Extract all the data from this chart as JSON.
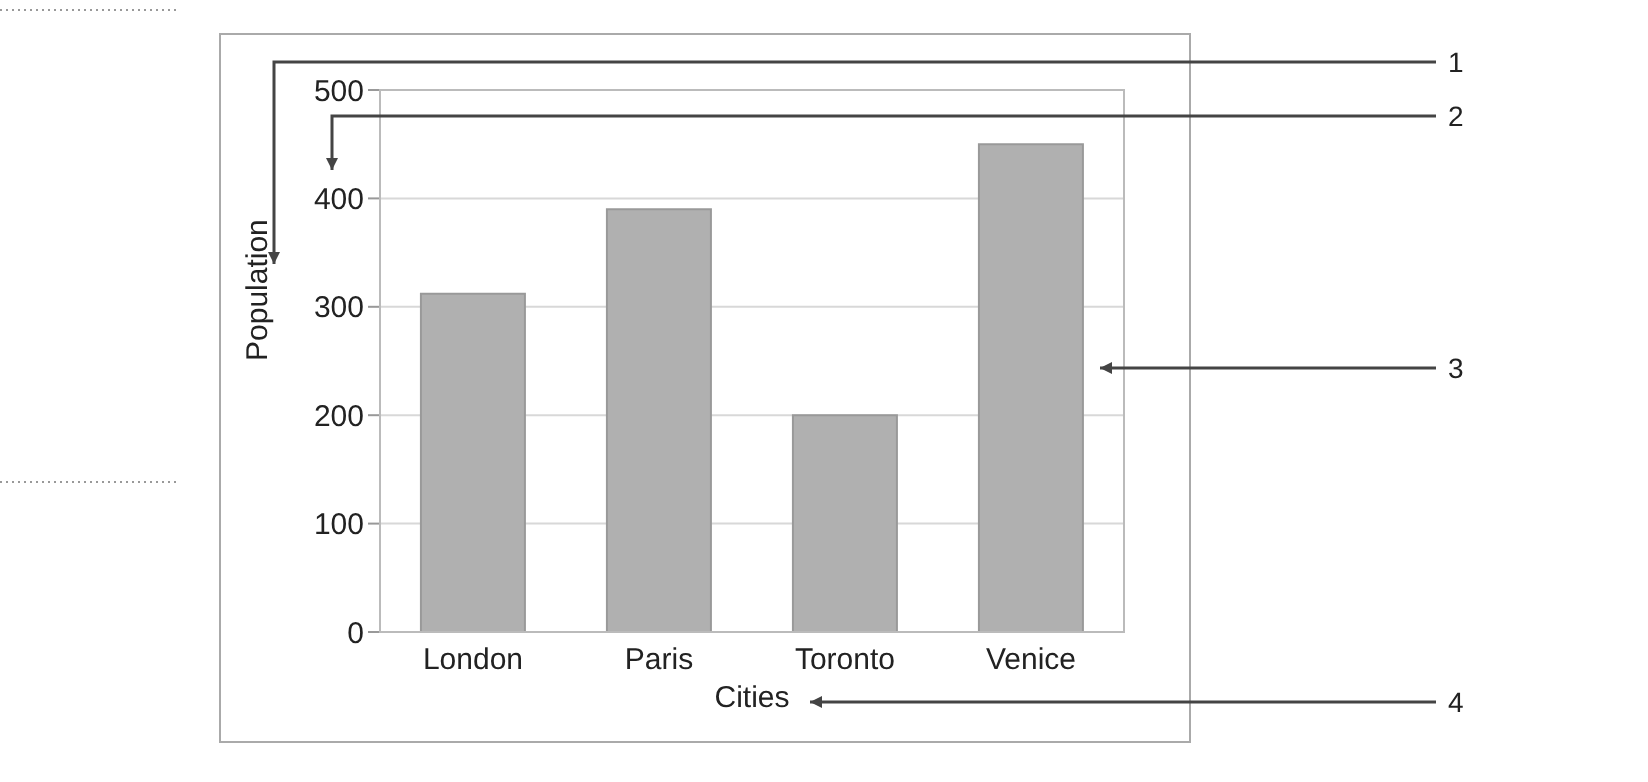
{
  "chart_data": {
    "type": "bar",
    "xlabel": "Cities",
    "ylabel": "Population",
    "categories": [
      "London",
      "Paris",
      "Toronto",
      "Venice"
    ],
    "values": [
      312,
      390,
      200,
      450
    ],
    "color": "#b0b0b0",
    "ylim": [
      0,
      500
    ],
    "yticks": [
      0,
      100,
      200,
      300,
      400,
      500
    ],
    "grid": "y",
    "annotations": [
      "1",
      "2",
      "3",
      "4"
    ]
  }
}
